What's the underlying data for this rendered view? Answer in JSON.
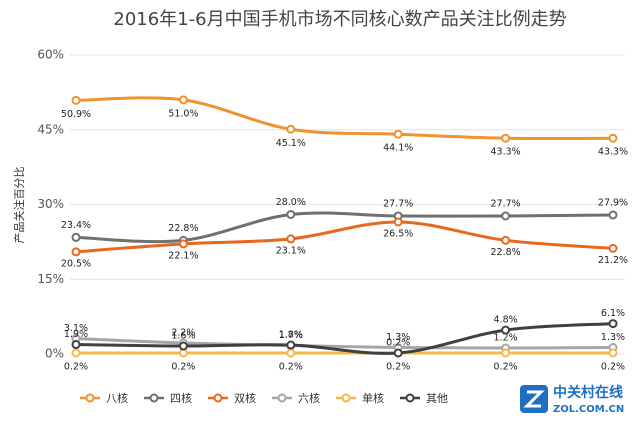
{
  "chart_data": {
    "type": "line",
    "title": "2016年1-6月中国手机市场不同核心数产品关注比例走势",
    "y_label": "产品关注百分比",
    "categories": [
      null,
      null,
      null,
      null,
      null,
      null
    ],
    "ylim": [
      0,
      60
    ],
    "yticks": [
      {
        "value": 0,
        "label": "0%"
      },
      {
        "value": 15,
        "label": "15%"
      },
      {
        "value": 30,
        "label": "30%"
      },
      {
        "value": 45,
        "label": "45%"
      },
      {
        "value": 60,
        "label": "60%"
      }
    ],
    "grid": true,
    "legend": "bottom",
    "series": [
      {
        "name": "八核",
        "color": "#f0922e",
        "values": [
          50.9,
          51.0,
          45.1,
          44.1,
          43.3,
          43.3
        ],
        "value_labels": [
          "50.9%",
          "51.0%",
          "45.1%",
          "44.1%",
          "43.3%",
          "43.3%"
        ]
      },
      {
        "name": "四核",
        "color": "#707070",
        "values": [
          23.4,
          22.8,
          28.0,
          27.7,
          27.7,
          27.9
        ],
        "value_labels": [
          "23.4%",
          "22.8%",
          "28.0%",
          "27.7%",
          "27.7%",
          "27.9%"
        ]
      },
      {
        "name": "双核",
        "color": "#e8681f",
        "values": [
          20.5,
          22.1,
          23.1,
          26.5,
          22.8,
          21.2
        ],
        "value_labels": [
          "20.5%",
          "22.1%",
          "23.1%",
          "26.5%",
          "22.8%",
          "21.2%"
        ]
      },
      {
        "name": "六核",
        "color": "#a6a6a6",
        "values": [
          3.1,
          2.2,
          1.7,
          1.3,
          1.2,
          1.3
        ],
        "value_labels": [
          "3.1%",
          "2.2%",
          "1.7%",
          "1.3%",
          "1.2%",
          "1.3%"
        ]
      },
      {
        "name": "单核",
        "color": "#f6b84a",
        "values": [
          0.2,
          0.2,
          0.2,
          0.2,
          0.2,
          0.2
        ],
        "value_labels": [
          "0.2%",
          "0.2%",
          "0.2%",
          "0.2%",
          "0.2%",
          "0.2%"
        ]
      },
      {
        "name": "其他",
        "color": "#404040",
        "values": [
          1.9,
          1.6,
          1.8,
          0.2,
          4.8,
          6.1
        ],
        "value_labels": [
          "1.9%",
          "1.6%",
          "1.8%",
          "0.2%",
          "4.8%",
          "6.1%"
        ]
      }
    ]
  },
  "watermark": {
    "name": "中关村在线",
    "url": "ZOL.COM.CN"
  }
}
